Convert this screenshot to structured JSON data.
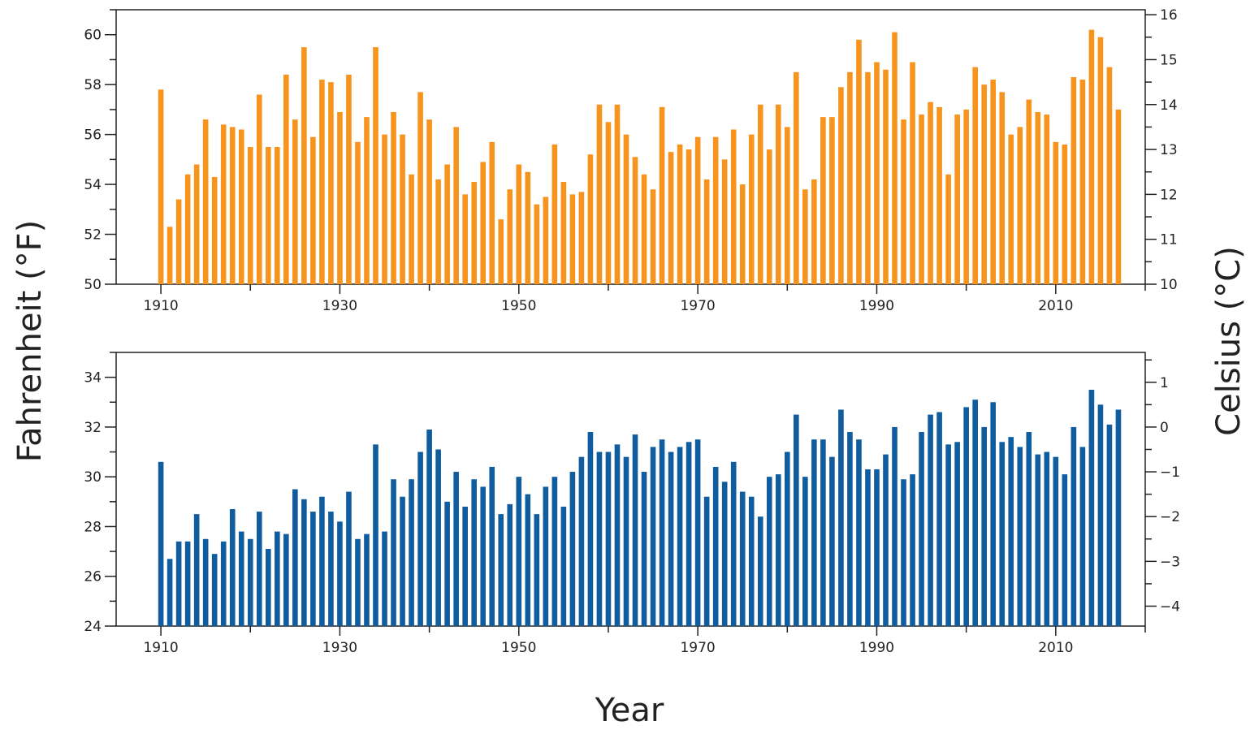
{
  "labels": {
    "ylabel_left": "Fahrenheit (°F)",
    "ylabel_right": "Celsius (°C)",
    "xlabel": "Year"
  },
  "chart_data": [
    {
      "type": "bar",
      "color": "#f7941d",
      "ylabel": "Fahrenheit (°F)",
      "ylabel_right": "Celsius (°C)",
      "xlabel": "",
      "x_ticks": [
        1910,
        1930,
        1950,
        1970,
        1990,
        2010
      ],
      "xlim": [
        1905,
        2020
      ],
      "ylim": [
        50,
        61
      ],
      "y_ticks": [
        50,
        52,
        54,
        56,
        58,
        60
      ],
      "y_ticks_right_celsius": [
        10,
        11,
        12,
        13,
        14,
        15,
        16
      ],
      "x": [
        1910,
        1911,
        1912,
        1913,
        1914,
        1915,
        1916,
        1917,
        1918,
        1919,
        1920,
        1921,
        1922,
        1923,
        1924,
        1925,
        1926,
        1927,
        1928,
        1929,
        1930,
        1931,
        1932,
        1933,
        1934,
        1935,
        1936,
        1937,
        1938,
        1939,
        1940,
        1941,
        1942,
        1943,
        1944,
        1945,
        1946,
        1947,
        1948,
        1949,
        1950,
        1951,
        1952,
        1953,
        1954,
        1955,
        1956,
        1957,
        1958,
        1959,
        1960,
        1961,
        1962,
        1963,
        1964,
        1965,
        1966,
        1967,
        1968,
        1969,
        1970,
        1971,
        1972,
        1973,
        1974,
        1975,
        1976,
        1977,
        1978,
        1979,
        1980,
        1981,
        1982,
        1983,
        1984,
        1985,
        1986,
        1987,
        1988,
        1989,
        1990,
        1991,
        1992,
        1993,
        1994,
        1995,
        1996,
        1997,
        1998,
        1999,
        2000,
        2001,
        2002,
        2003,
        2004,
        2005,
        2006,
        2007,
        2008,
        2009,
        2010,
        2011,
        2012,
        2013,
        2014,
        2015,
        2016,
        2017
      ],
      "values": [
        57.8,
        52.3,
        53.4,
        54.4,
        54.8,
        56.6,
        54.3,
        56.4,
        56.3,
        56.2,
        55.5,
        57.6,
        55.5,
        55.5,
        58.4,
        56.6,
        59.5,
        55.9,
        58.2,
        58.1,
        56.9,
        58.4,
        55.7,
        56.7,
        59.5,
        56.0,
        56.9,
        56.0,
        54.4,
        57.7,
        56.6,
        54.2,
        54.8,
        56.3,
        53.6,
        54.1,
        54.9,
        55.7,
        52.6,
        53.8,
        54.8,
        54.5,
        53.2,
        53.5,
        55.6,
        54.1,
        53.6,
        53.7,
        55.2,
        57.2,
        56.5,
        57.2,
        56.0,
        55.1,
        54.4,
        53.8,
        57.1,
        55.3,
        55.6,
        55.4,
        55.9,
        54.2,
        55.9,
        55.0,
        56.2,
        54.0,
        56.0,
        57.2,
        55.4,
        57.2,
        56.3,
        58.5,
        53.8,
        54.2,
        56.7,
        56.7,
        57.9,
        58.5,
        59.8,
        58.5,
        58.9,
        58.6,
        60.1,
        56.6,
        58.9,
        56.8,
        57.3,
        57.1,
        54.4,
        56.8,
        57.0,
        58.7,
        58.0,
        58.2,
        57.7,
        56.0,
        56.3,
        57.4,
        56.9,
        56.8,
        55.7,
        55.6,
        58.3,
        58.2,
        60.2,
        59.9,
        58.7,
        57.0
      ]
    },
    {
      "type": "bar",
      "color": "#0f5c9e",
      "ylabel": "Fahrenheit (°F)",
      "ylabel_right": "Celsius (°C)",
      "xlabel": "Year",
      "x_ticks": [
        1910,
        1930,
        1950,
        1970,
        1990,
        2010
      ],
      "xlim": [
        1905,
        2020
      ],
      "ylim": [
        24,
        35
      ],
      "y_ticks": [
        24,
        26,
        28,
        30,
        32,
        34
      ],
      "y_ticks_right_celsius": [
        -4,
        -3,
        -2,
        -1,
        0,
        1
      ],
      "x": [
        1910,
        1911,
        1912,
        1913,
        1914,
        1915,
        1916,
        1917,
        1918,
        1919,
        1920,
        1921,
        1922,
        1923,
        1924,
        1925,
        1926,
        1927,
        1928,
        1929,
        1930,
        1931,
        1932,
        1933,
        1934,
        1935,
        1936,
        1937,
        1938,
        1939,
        1940,
        1941,
        1942,
        1943,
        1944,
        1945,
        1946,
        1947,
        1948,
        1949,
        1950,
        1951,
        1952,
        1953,
        1954,
        1955,
        1956,
        1957,
        1958,
        1959,
        1960,
        1961,
        1962,
        1963,
        1964,
        1965,
        1966,
        1967,
        1968,
        1969,
        1970,
        1971,
        1972,
        1973,
        1974,
        1975,
        1976,
        1977,
        1978,
        1979,
        1980,
        1981,
        1982,
        1983,
        1984,
        1985,
        1986,
        1987,
        1988,
        1989,
        1990,
        1991,
        1992,
        1993,
        1994,
        1995,
        1996,
        1997,
        1998,
        1999,
        2000,
        2001,
        2002,
        2003,
        2004,
        2005,
        2006,
        2007,
        2008,
        2009,
        2010,
        2011,
        2012,
        2013,
        2014,
        2015,
        2016,
        2017
      ],
      "values": [
        30.6,
        26.7,
        27.4,
        27.4,
        28.5,
        27.5,
        26.9,
        27.4,
        28.7,
        27.8,
        27.5,
        28.6,
        27.1,
        27.8,
        27.7,
        29.5,
        29.1,
        28.6,
        29.2,
        28.6,
        28.2,
        29.4,
        27.5,
        27.7,
        31.3,
        27.8,
        29.9,
        29.2,
        29.9,
        31.0,
        31.9,
        31.1,
        29.0,
        30.2,
        28.8,
        29.9,
        29.6,
        30.4,
        28.5,
        28.9,
        30.0,
        29.3,
        28.5,
        29.6,
        30.0,
        28.8,
        30.2,
        30.8,
        31.8,
        31.0,
        31.0,
        31.3,
        30.8,
        31.7,
        30.2,
        31.2,
        31.5,
        31.0,
        31.2,
        31.4,
        31.5,
        29.2,
        30.4,
        29.8,
        30.6,
        29.4,
        29.2,
        28.4,
        30.0,
        30.1,
        31.0,
        32.5,
        30.0,
        31.5,
        31.5,
        30.8,
        32.7,
        31.8,
        31.5,
        30.3,
        30.3,
        30.9,
        32.0,
        29.9,
        30.1,
        31.8,
        32.5,
        32.6,
        31.3,
        31.4,
        32.8,
        33.1,
        32.0,
        33.0,
        31.4,
        31.6,
        31.2,
        31.8,
        30.9,
        31.0,
        30.8,
        30.1,
        32.0,
        31.2,
        33.5,
        32.9,
        32.1,
        32.7
      ]
    }
  ]
}
